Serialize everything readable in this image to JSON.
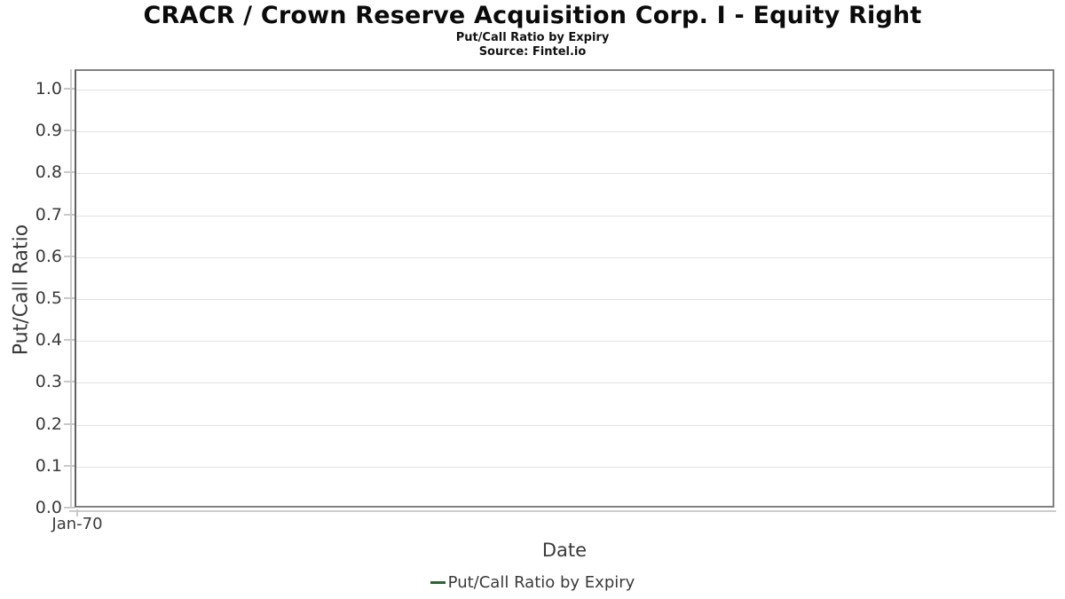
{
  "chart_data": {
    "type": "line",
    "title": "CRACR / Crown Reserve Acquisition Corp. I - Equity Right",
    "subtitle": "Put/Call Ratio by Expiry",
    "source": "Source: Fintel.io",
    "xlabel": "Date",
    "ylabel": "Put/Call Ratio",
    "ylim": [
      0.0,
      1.0
    ],
    "y_ticks": [
      0.0,
      0.1,
      0.2,
      0.3,
      0.4,
      0.5,
      0.6,
      0.7,
      0.8,
      0.9,
      1.0
    ],
    "y_tick_labels": [
      "1.0",
      "0.9",
      "0.8",
      "0.7",
      "0.6",
      "0.5",
      "0.4",
      "0.3",
      "0.2",
      "0.1",
      "0.0"
    ],
    "x_tick_labels": [
      "Jan-70"
    ],
    "grid": true,
    "legend_position": "bottom-center",
    "series": [
      {
        "name": "Put/Call Ratio by Expiry",
        "color": "#2d6234",
        "x": [],
        "values": []
      }
    ]
  },
  "legend": {
    "items": [
      {
        "label": "Put/Call Ratio by Expiry",
        "color": "#2d6234",
        "marker": "line-dash"
      }
    ]
  },
  "colors": {
    "background": "#ffffff",
    "plot_border": "#818181",
    "gridline": "#e2e2e2",
    "axis_line": "#cccccc",
    "tick_text": "#3a3a3a",
    "title_text": "#0b0b0b",
    "series_green": "#2d6234"
  }
}
